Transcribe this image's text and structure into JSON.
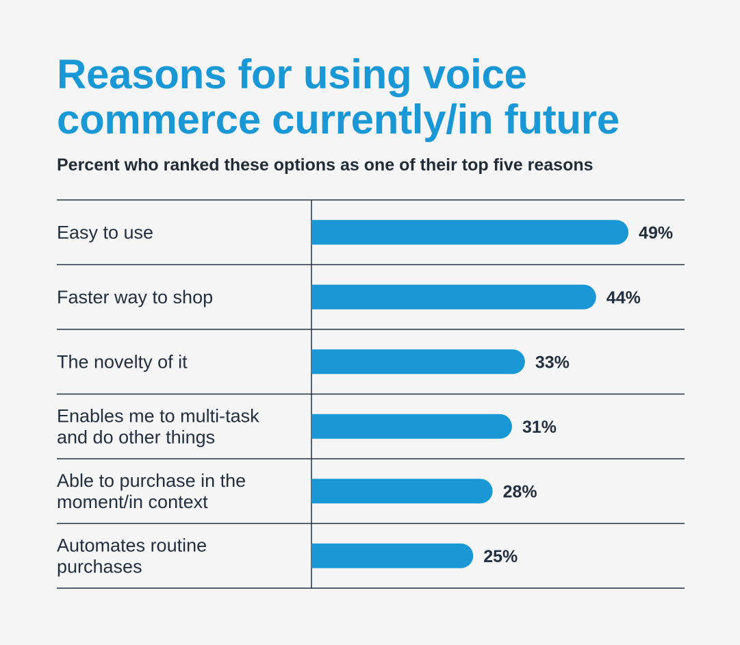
{
  "colors": {
    "background": "#f5f5f6",
    "title": "#1a98d5",
    "bar": "#1a98d5",
    "text": "#232f3e",
    "rule": "#232f3e"
  },
  "chart_data": {
    "type": "bar",
    "orientation": "horizontal",
    "title": "Reasons for using voice commerce currently/in future",
    "subtitle": "Percent who ranked these options as one of their top five reasons",
    "categories": [
      [
        "Easy to use"
      ],
      [
        "Faster way to shop"
      ],
      [
        "The novelty of it"
      ],
      [
        "Enables me to multi-task",
        "and do other things"
      ],
      [
        "Able to purchase in the",
        "moment/in context"
      ],
      [
        "Automates routine",
        "purchases"
      ]
    ],
    "values": [
      49,
      44,
      33,
      31,
      28,
      25
    ],
    "value_labels": [
      "49%",
      "44%",
      "33%",
      "31%",
      "28%",
      "25%"
    ],
    "xlim": [
      0,
      100
    ],
    "grid": false,
    "legend": "none"
  }
}
